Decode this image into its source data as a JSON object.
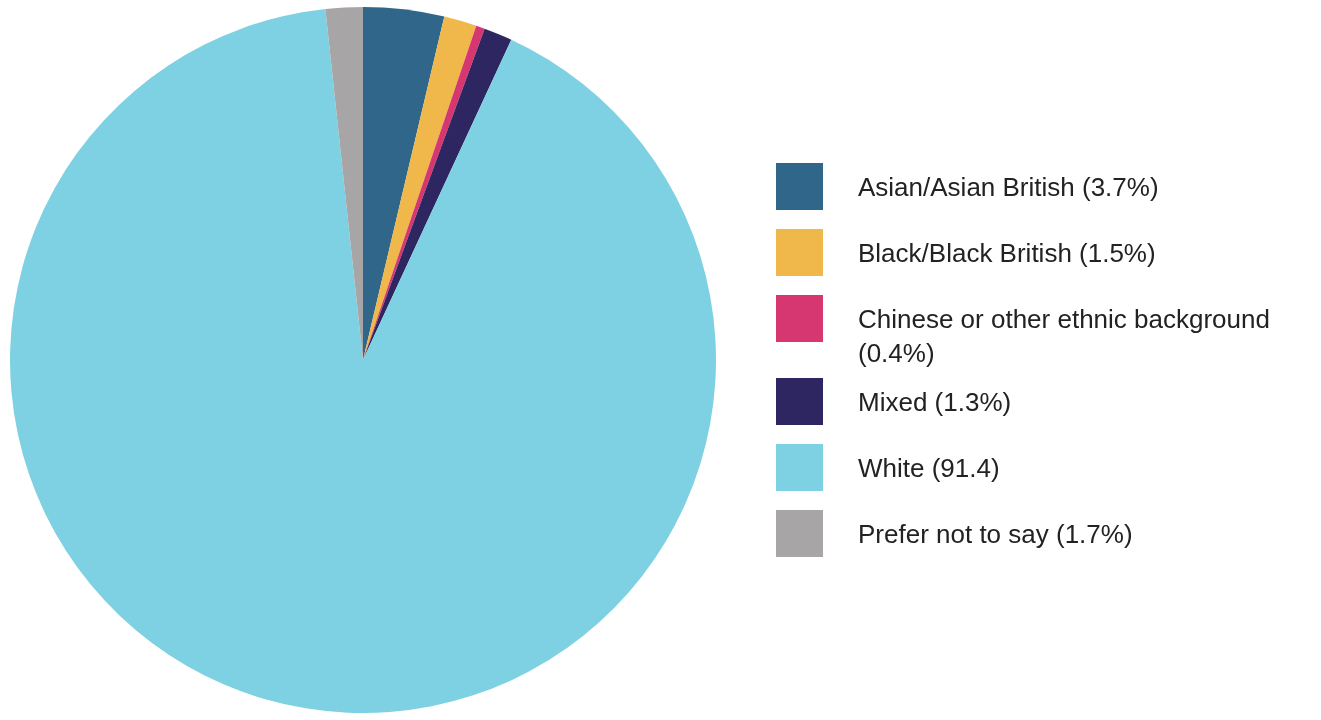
{
  "chart_data": {
    "type": "pie",
    "categories": [
      "Asian/Asian British (3.7%)",
      "Black/Black British (1.5%)",
      "Chinese or other ethnic background (0.4%)",
      "Mixed (1.3%)",
      "White (91.4)",
      "Prefer not to say (1.7%)"
    ],
    "values": [
      3.7,
      1.5,
      0.4,
      1.3,
      91.4,
      1.7
    ],
    "colors": [
      "#2f6689",
      "#f0b74a",
      "#d63770",
      "#2e2660",
      "#7ed1e2",
      "#a7a5a6"
    ],
    "legend": "right"
  }
}
